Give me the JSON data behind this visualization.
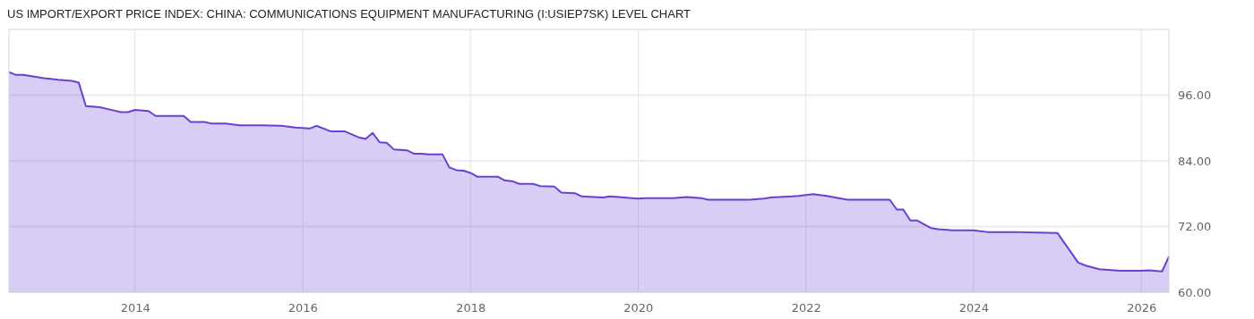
{
  "chart_data": {
    "type": "area",
    "title": "US IMPORT/EXPORT PRICE INDEX: CHINA: COMMUNICATIONS EQUIPMENT MANUFACTURING (I:USIEP7SK) LEVEL CHART",
    "x": [
      "2012-07",
      "2012-08",
      "2012-09",
      "2012-10",
      "2012-12",
      "2013-02",
      "2013-04",
      "2013-05",
      "2013-06",
      "2013-08",
      "2013-10",
      "2013-11",
      "2013-12",
      "2014-01",
      "2014-03",
      "2014-04",
      "2014-08",
      "2014-09",
      "2014-11",
      "2014-12",
      "2015-02",
      "2015-04",
      "2015-07",
      "2015-10",
      "2015-12",
      "2016-02",
      "2016-03",
      "2016-05",
      "2016-07",
      "2016-09",
      "2016-10",
      "2016-11",
      "2016-12",
      "2017-01",
      "2017-02",
      "2017-04",
      "2017-05",
      "2017-06",
      "2017-07",
      "2017-09",
      "2017-10",
      "2017-11",
      "2017-12",
      "2018-01",
      "2018-02",
      "2018-05",
      "2018-06",
      "2018-07",
      "2018-08",
      "2018-10",
      "2018-11",
      "2019-01",
      "2019-02",
      "2019-04",
      "2019-05",
      "2019-08",
      "2019-09",
      "2020-01",
      "2020-02",
      "2020-06",
      "2020-08",
      "2020-10",
      "2020-11",
      "2021-05",
      "2021-07",
      "2021-08",
      "2021-11",
      "2021-12",
      "2022-02",
      "2022-04",
      "2022-07",
      "2023-01",
      "2023-02",
      "2023-03",
      "2023-04",
      "2023-05",
      "2023-07",
      "2023-08",
      "2023-10",
      "2024-01",
      "2024-03",
      "2024-07",
      "2024-10",
      "2025-01",
      "2025-04",
      "2025-05",
      "2025-07",
      "2025-10",
      "2026-01",
      "2026-02",
      "2026-04",
      "2026-05"
    ],
    "series": [
      {
        "color": "#6a3fd4",
        "values": [
          100.2,
          99.7,
          99.7,
          99.5,
          99.1,
          98.8,
          98.6,
          98.3,
          94.0,
          93.8,
          93.2,
          92.9,
          92.9,
          93.3,
          93.1,
          92.2,
          92.2,
          91.1,
          91.1,
          90.8,
          90.8,
          90.5,
          90.5,
          90.4,
          90.1,
          89.9,
          90.4,
          89.4,
          89.4,
          88.3,
          88.0,
          89.1,
          87.4,
          87.3,
          86.1,
          85.9,
          85.3,
          85.3,
          85.2,
          85.2,
          82.8,
          82.3,
          82.2,
          81.8,
          81.1,
          81.1,
          80.4,
          80.3,
          79.8,
          79.8,
          79.4,
          79.3,
          78.2,
          78.1,
          77.5,
          77.3,
          77.5,
          77.1,
          77.2,
          77.2,
          77.4,
          77.2,
          76.9,
          76.9,
          77.1,
          77.3,
          77.5,
          77.6,
          77.9,
          77.6,
          76.9,
          76.9,
          75.1,
          75.1,
          73.1,
          73.1,
          71.7,
          71.5,
          71.3,
          71.3,
          71.0,
          71.0,
          70.9,
          70.8,
          65.4,
          64.9,
          64.2,
          63.9,
          63.9,
          64.0,
          63.8,
          66.5
        ]
      }
    ],
    "xlim": [
      "2012-07",
      "2026-05"
    ],
    "xticks": [
      {
        "value": "2014",
        "label": "2014"
      },
      {
        "value": "2016",
        "label": "2016"
      },
      {
        "value": "2018",
        "label": "2018"
      },
      {
        "value": "2020",
        "label": "2020"
      },
      {
        "value": "2022",
        "label": "2022"
      },
      {
        "value": "2024",
        "label": "2024"
      },
      {
        "value": "2026",
        "label": "2026"
      }
    ],
    "ylim": [
      60,
      108
    ],
    "yticks": [
      {
        "value": 60,
        "label": "60.00"
      },
      {
        "value": 72,
        "label": "72.00"
      },
      {
        "value": 84,
        "label": "84.00"
      },
      {
        "value": 96,
        "label": "96.00"
      }
    ],
    "grid": true
  }
}
